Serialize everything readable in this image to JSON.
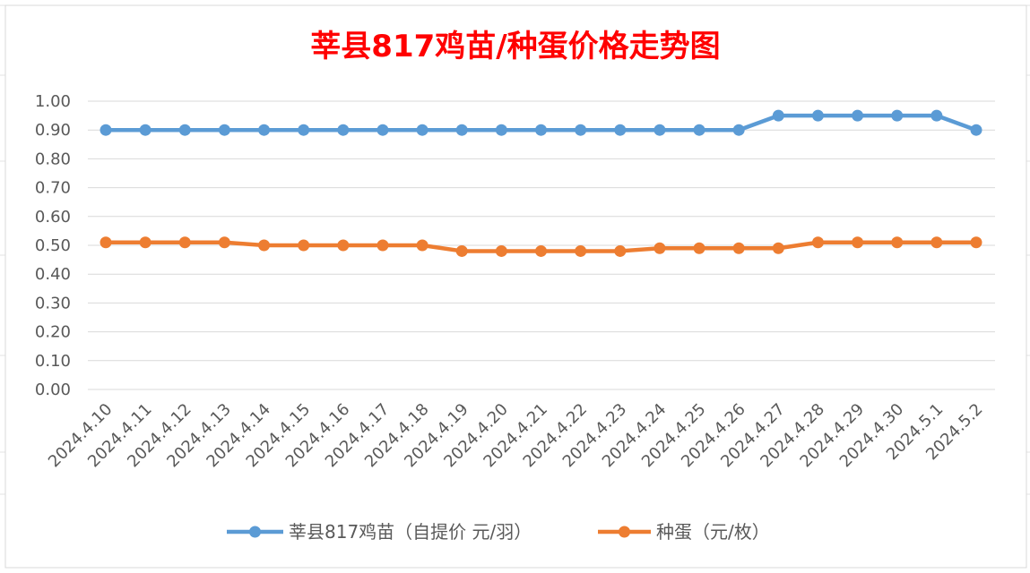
{
  "chart_data": {
    "type": "line",
    "title": "莘县817鸡苗/种蛋价格走势图",
    "categories": [
      "2024.4.10",
      "2024.4.11",
      "2024.4.12",
      "2024.4.13",
      "2024.4.14",
      "2024.4.15",
      "2024.4.16",
      "2024.4.17",
      "2024.4.18",
      "2024.4.19",
      "2024.4.20",
      "2024.4.21",
      "2024.4.22",
      "2024.4.23",
      "2024.4.24",
      "2024.4.25",
      "2024.4.26",
      "2024.4.27",
      "2024.4.28",
      "2024.4.29",
      "2024.4.30",
      "2024.5.1",
      "2024.5.2"
    ],
    "series": [
      {
        "name": "莘县817鸡苗（自提价 元/羽）",
        "color": "#5B9BD5",
        "values": [
          0.9,
          0.9,
          0.9,
          0.9,
          0.9,
          0.9,
          0.9,
          0.9,
          0.9,
          0.9,
          0.9,
          0.9,
          0.9,
          0.9,
          0.9,
          0.9,
          0.9,
          0.95,
          0.95,
          0.95,
          0.95,
          0.95,
          0.9
        ]
      },
      {
        "name": "种蛋（元/枚）",
        "color": "#ED7D31",
        "values": [
          0.51,
          0.51,
          0.51,
          0.51,
          0.5,
          0.5,
          0.5,
          0.5,
          0.5,
          0.48,
          0.48,
          0.48,
          0.48,
          0.48,
          0.49,
          0.49,
          0.49,
          0.49,
          0.51,
          0.51,
          0.51,
          0.51,
          0.51
        ]
      }
    ],
    "ylim": [
      0,
      1.0
    ],
    "yticks": [
      "0.00",
      "0.10",
      "0.20",
      "0.30",
      "0.40",
      "0.50",
      "0.60",
      "0.70",
      "0.80",
      "0.90",
      "1.00"
    ],
    "grid": true,
    "legend": "bottom",
    "title_color": "#FF0000"
  }
}
